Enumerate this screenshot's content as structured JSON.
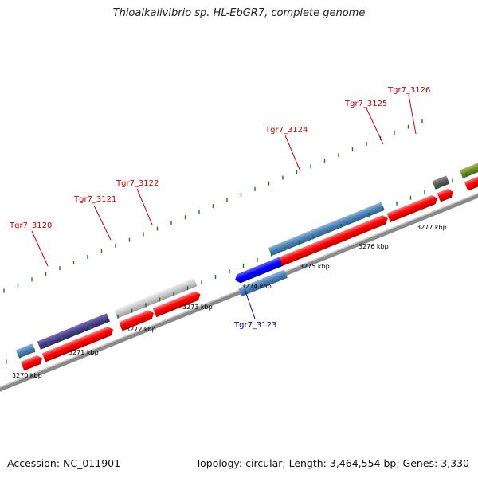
{
  "title": "Thioalkalivibrio sp. HL-EbGR7, complete genome",
  "footer": {
    "accession": "Accession: NC_011901",
    "summary": "Topology: circular; Length: 3,464,554 bp; Genes: 3,330"
  },
  "scale_labels": [
    "3270 kbp",
    "3271 kbp",
    "3272 kbp",
    "3273 kbp",
    "3274 kbp",
    "3275 kbp",
    "3276 kbp",
    "3277 kbp"
  ],
  "gene_labels": [
    {
      "id": "Tgr7_3120",
      "strand": "forward"
    },
    {
      "id": "Tgr7_3121",
      "strand": "forward"
    },
    {
      "id": "Tgr7_3122",
      "strand": "forward"
    },
    {
      "id": "Tgr7_3123",
      "strand": "reverse"
    },
    {
      "id": "Tgr7_3124",
      "strand": "forward"
    },
    {
      "id": "Tgr7_3125",
      "strand": "forward"
    },
    {
      "id": "Tgr7_3126",
      "strand": "forward"
    }
  ],
  "colors": {
    "forward_label": "#cc0000",
    "reverse_label": "#0000aa",
    "cds": "#ff0000",
    "backbone": "#8a8a8a",
    "tick": "#1a7a1a",
    "gene_3120": "#4b3f8a",
    "gene_3122": "#c8c8c8",
    "gene_3123": "#0000ff",
    "gene_3124": "#4a7fb5",
    "gene_3126": "#5a5a5a",
    "gene_olive": "#6b8e23"
  }
}
